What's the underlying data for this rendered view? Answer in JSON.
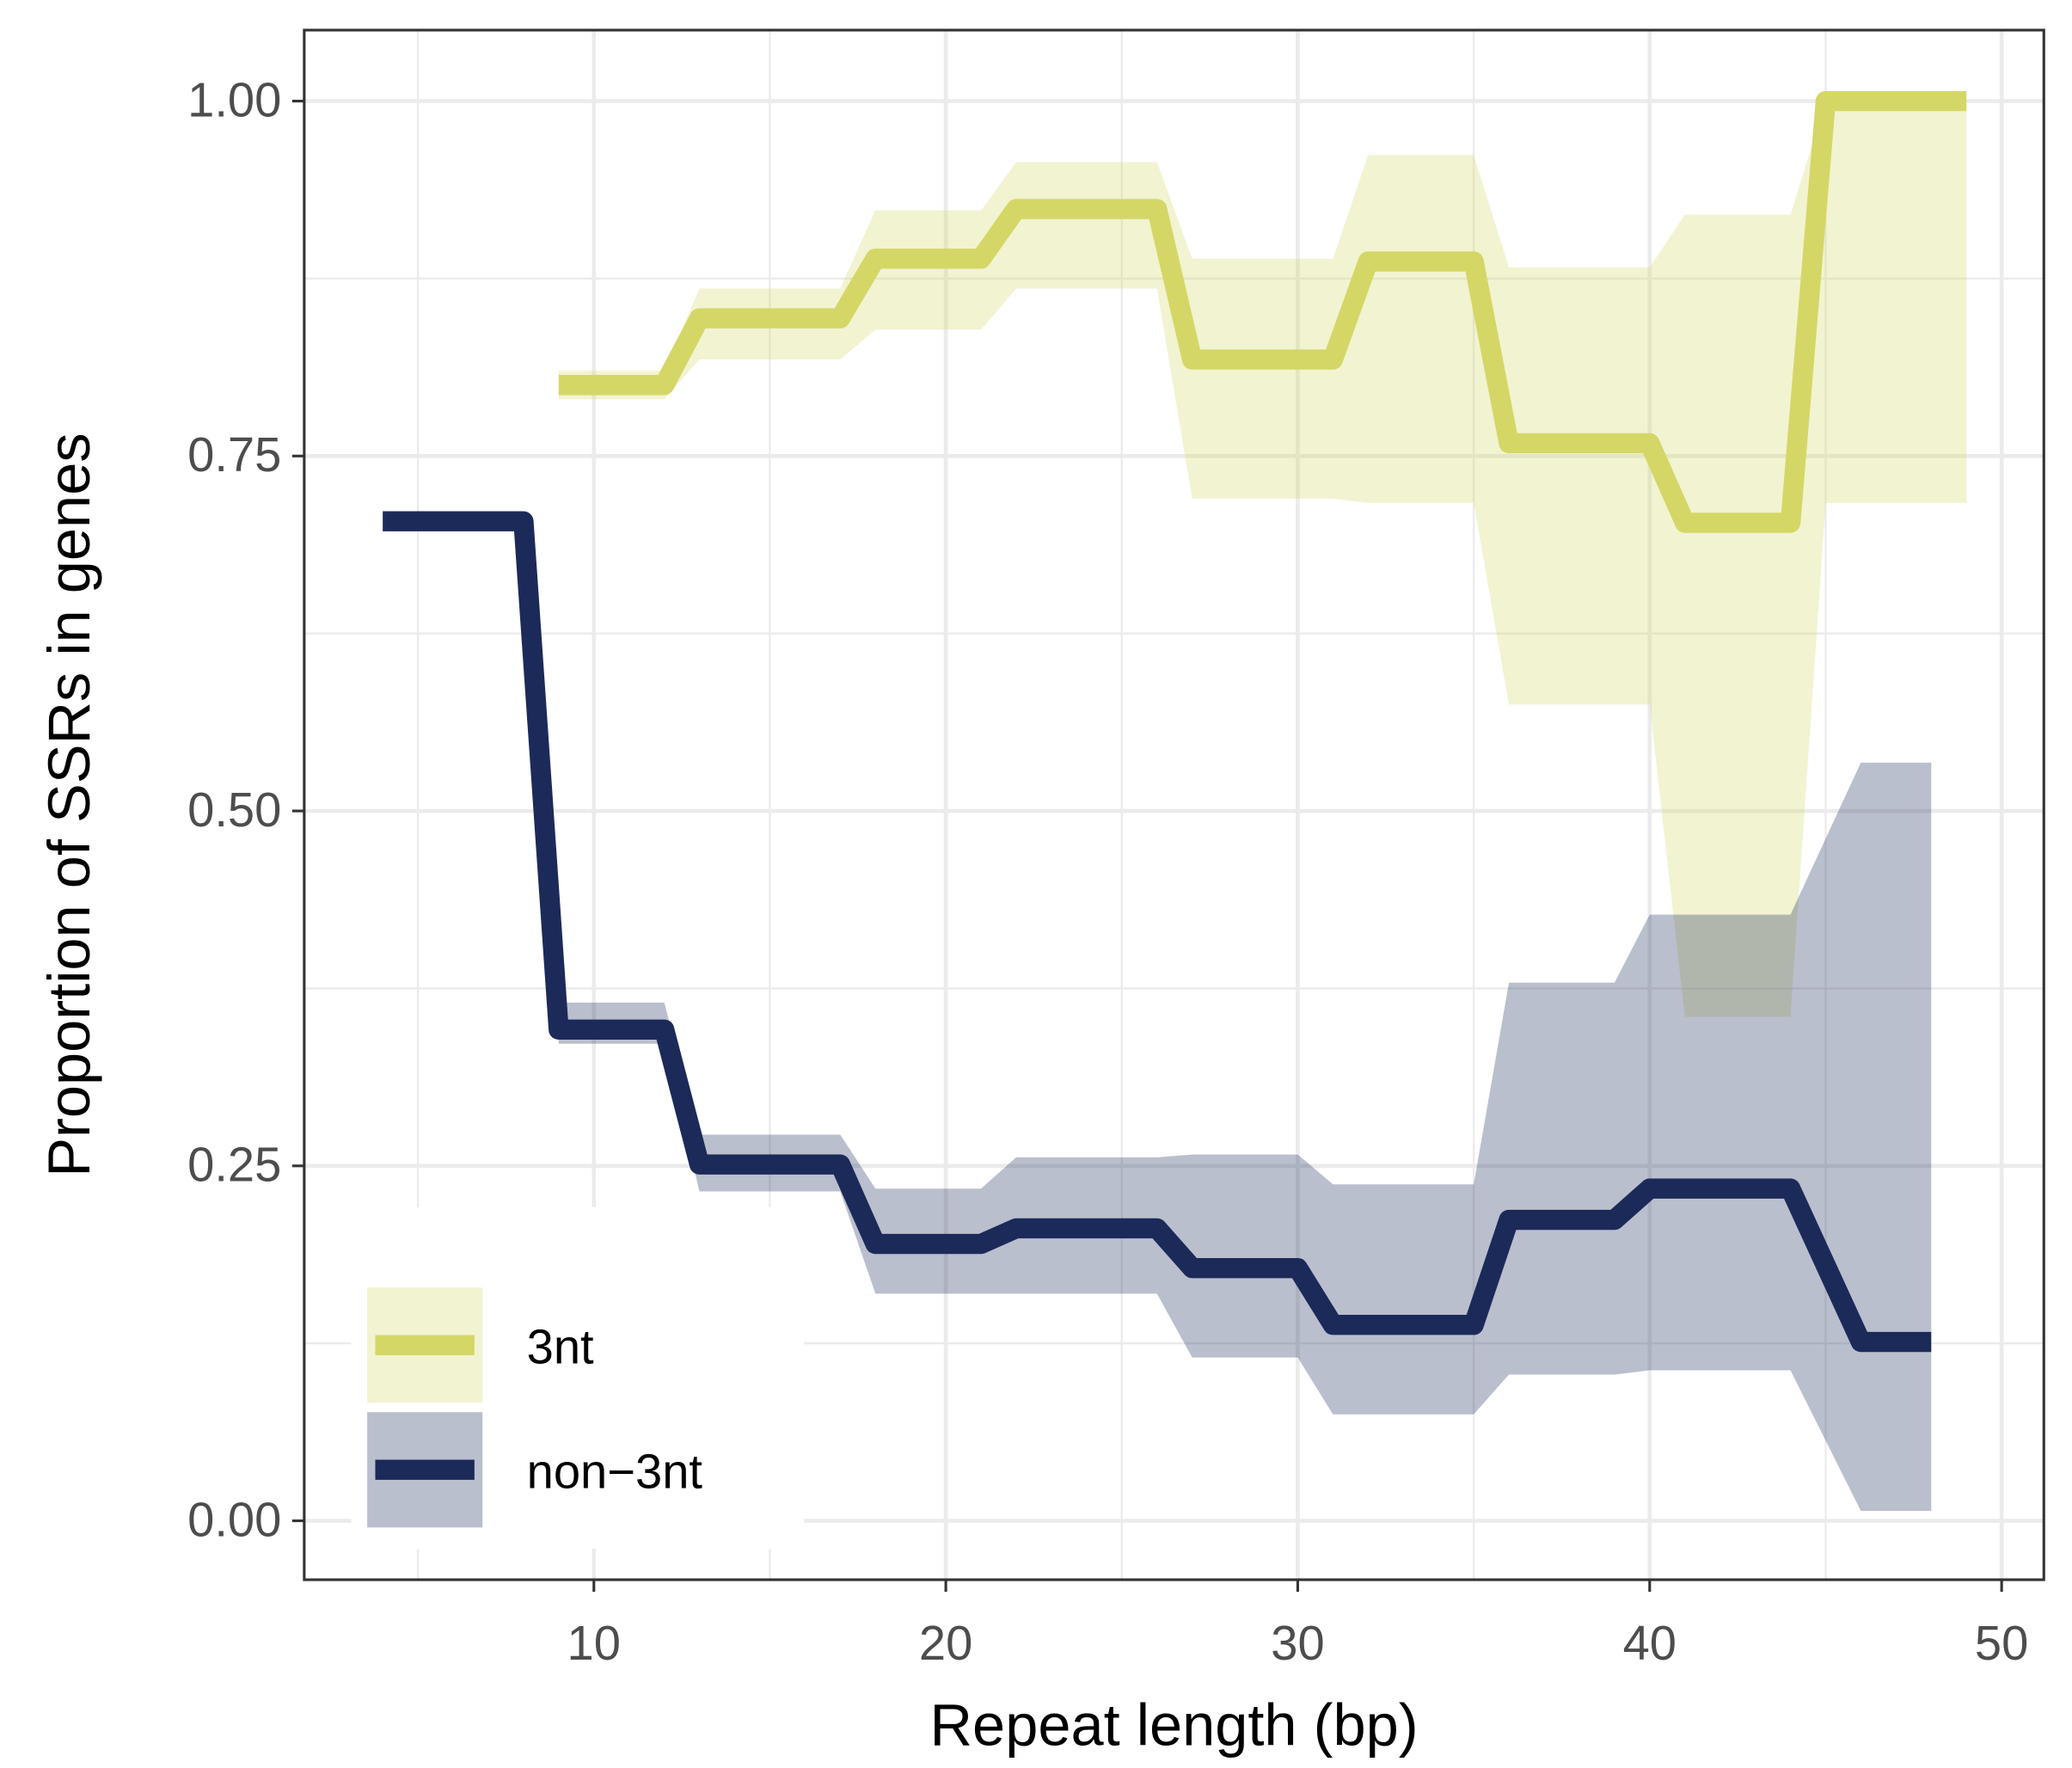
{
  "chart_data": {
    "type": "line",
    "xlabel": "Repeat length (bp)",
    "ylabel": "Proportion of SSRs in genes",
    "xlim": [
      1.77,
      51.2
    ],
    "ylim": [
      -0.0415,
      1.05
    ],
    "xticks": [
      10,
      20,
      30,
      40,
      50
    ],
    "yticks": [
      {
        "value": 0,
        "label": "0.00"
      },
      {
        "value": 0.25,
        "label": "0.25"
      },
      {
        "value": 0.5,
        "label": "0.50"
      },
      {
        "value": 0.75,
        "label": "0.75"
      },
      {
        "value": 1,
        "label": "1.00"
      }
    ],
    "grid": true,
    "legend": "bottom-left",
    "series": [
      {
        "name": "3nt",
        "color": "#d4d766",
        "x": [
          9,
          10,
          11,
          12,
          13,
          14,
          15,
          16,
          17,
          18,
          19,
          20,
          21,
          22,
          23,
          24,
          25,
          26,
          27,
          28,
          29,
          30,
          31,
          32,
          33,
          34,
          35,
          36,
          37,
          38,
          39,
          40,
          41,
          42,
          43,
          44,
          45,
          46,
          47,
          48,
          49
        ],
        "values": [
          0.8,
          0.8,
          0.8,
          0.8,
          0.847,
          0.847,
          0.847,
          0.847,
          0.847,
          0.889,
          0.889,
          0.889,
          0.889,
          0.924,
          0.924,
          0.924,
          0.924,
          0.924,
          0.818,
          0.818,
          0.818,
          0.818,
          0.818,
          0.887,
          0.887,
          0.887,
          0.887,
          0.759,
          0.759,
          0.759,
          0.759,
          0.759,
          0.703,
          0.703,
          0.703,
          0.703,
          1,
          1,
          1,
          1,
          1
        ],
        "upper": [
          0.81,
          0.81,
          0.81,
          0.81,
          0.868,
          0.868,
          0.868,
          0.868,
          0.868,
          0.923,
          0.923,
          0.923,
          0.923,
          0.957,
          0.957,
          0.957,
          0.957,
          0.957,
          0.889,
          0.889,
          0.889,
          0.889,
          0.889,
          0.962,
          0.962,
          0.962,
          0.962,
          0.883,
          0.883,
          0.883,
          0.883,
          0.883,
          0.92,
          0.92,
          0.92,
          0.92,
          1,
          1,
          1,
          1,
          1
        ],
        "lower": [
          0.79,
          0.79,
          0.79,
          0.79,
          0.818,
          0.818,
          0.818,
          0.818,
          0.818,
          0.839,
          0.839,
          0.839,
          0.839,
          0.868,
          0.868,
          0.868,
          0.868,
          0.868,
          0.72,
          0.72,
          0.72,
          0.72,
          0.72,
          0.717,
          0.717,
          0.717,
          0.717,
          0.575,
          0.575,
          0.575,
          0.575,
          0.575,
          0.355,
          0.355,
          0.355,
          0.355,
          0.717,
          0.717,
          0.717,
          0.717,
          0.717
        ]
      },
      {
        "name": "non−3nt",
        "color": "#1c2a5a",
        "x": [
          4,
          5,
          6,
          7,
          8,
          9,
          10,
          11,
          12,
          13,
          14,
          15,
          16,
          17,
          18,
          19,
          20,
          21,
          22,
          23,
          24,
          25,
          26,
          27,
          28,
          29,
          30,
          31,
          32,
          33,
          34,
          35,
          36,
          37,
          38,
          39,
          40,
          41,
          42,
          43,
          44,
          46,
          47,
          48
        ],
        "values": [
          0.704,
          0.704,
          0.704,
          0.704,
          0.704,
          0.346,
          0.346,
          0.346,
          0.346,
          0.251,
          0.251,
          0.251,
          0.251,
          0.251,
          0.195,
          0.195,
          0.195,
          0.195,
          0.206,
          0.206,
          0.206,
          0.206,
          0.206,
          0.178,
          0.178,
          0.178,
          0.178,
          0.138,
          0.138,
          0.138,
          0.138,
          0.138,
          0.212,
          0.212,
          0.212,
          0.212,
          0.234,
          0.234,
          0.234,
          0.234,
          0.234,
          0.126,
          0.126,
          0.126
        ],
        "upper": [
          null,
          null,
          null,
          null,
          null,
          0.365,
          0.365,
          0.365,
          0.365,
          0.272,
          0.272,
          0.272,
          0.272,
          0.272,
          0.234,
          0.234,
          0.234,
          0.234,
          0.256,
          0.256,
          0.256,
          0.256,
          0.256,
          0.258,
          0.258,
          0.258,
          0.258,
          0.237,
          0.237,
          0.237,
          0.237,
          0.237,
          0.379,
          0.379,
          0.379,
          0.379,
          0.427,
          0.427,
          0.427,
          0.427,
          0.427,
          0.534,
          0.534,
          0.534
        ],
        "lower": [
          null,
          null,
          null,
          null,
          null,
          0.336,
          0.336,
          0.336,
          0.336,
          0.232,
          0.232,
          0.232,
          0.232,
          0.232,
          0.16,
          0.16,
          0.16,
          0.16,
          0.16,
          0.16,
          0.16,
          0.16,
          0.16,
          0.115,
          0.115,
          0.115,
          0.115,
          0.075,
          0.075,
          0.075,
          0.075,
          0.075,
          0.103,
          0.103,
          0.103,
          0.103,
          0.106,
          0.106,
          0.106,
          0.106,
          0.106,
          0.007,
          0.007,
          0.007
        ]
      }
    ]
  }
}
